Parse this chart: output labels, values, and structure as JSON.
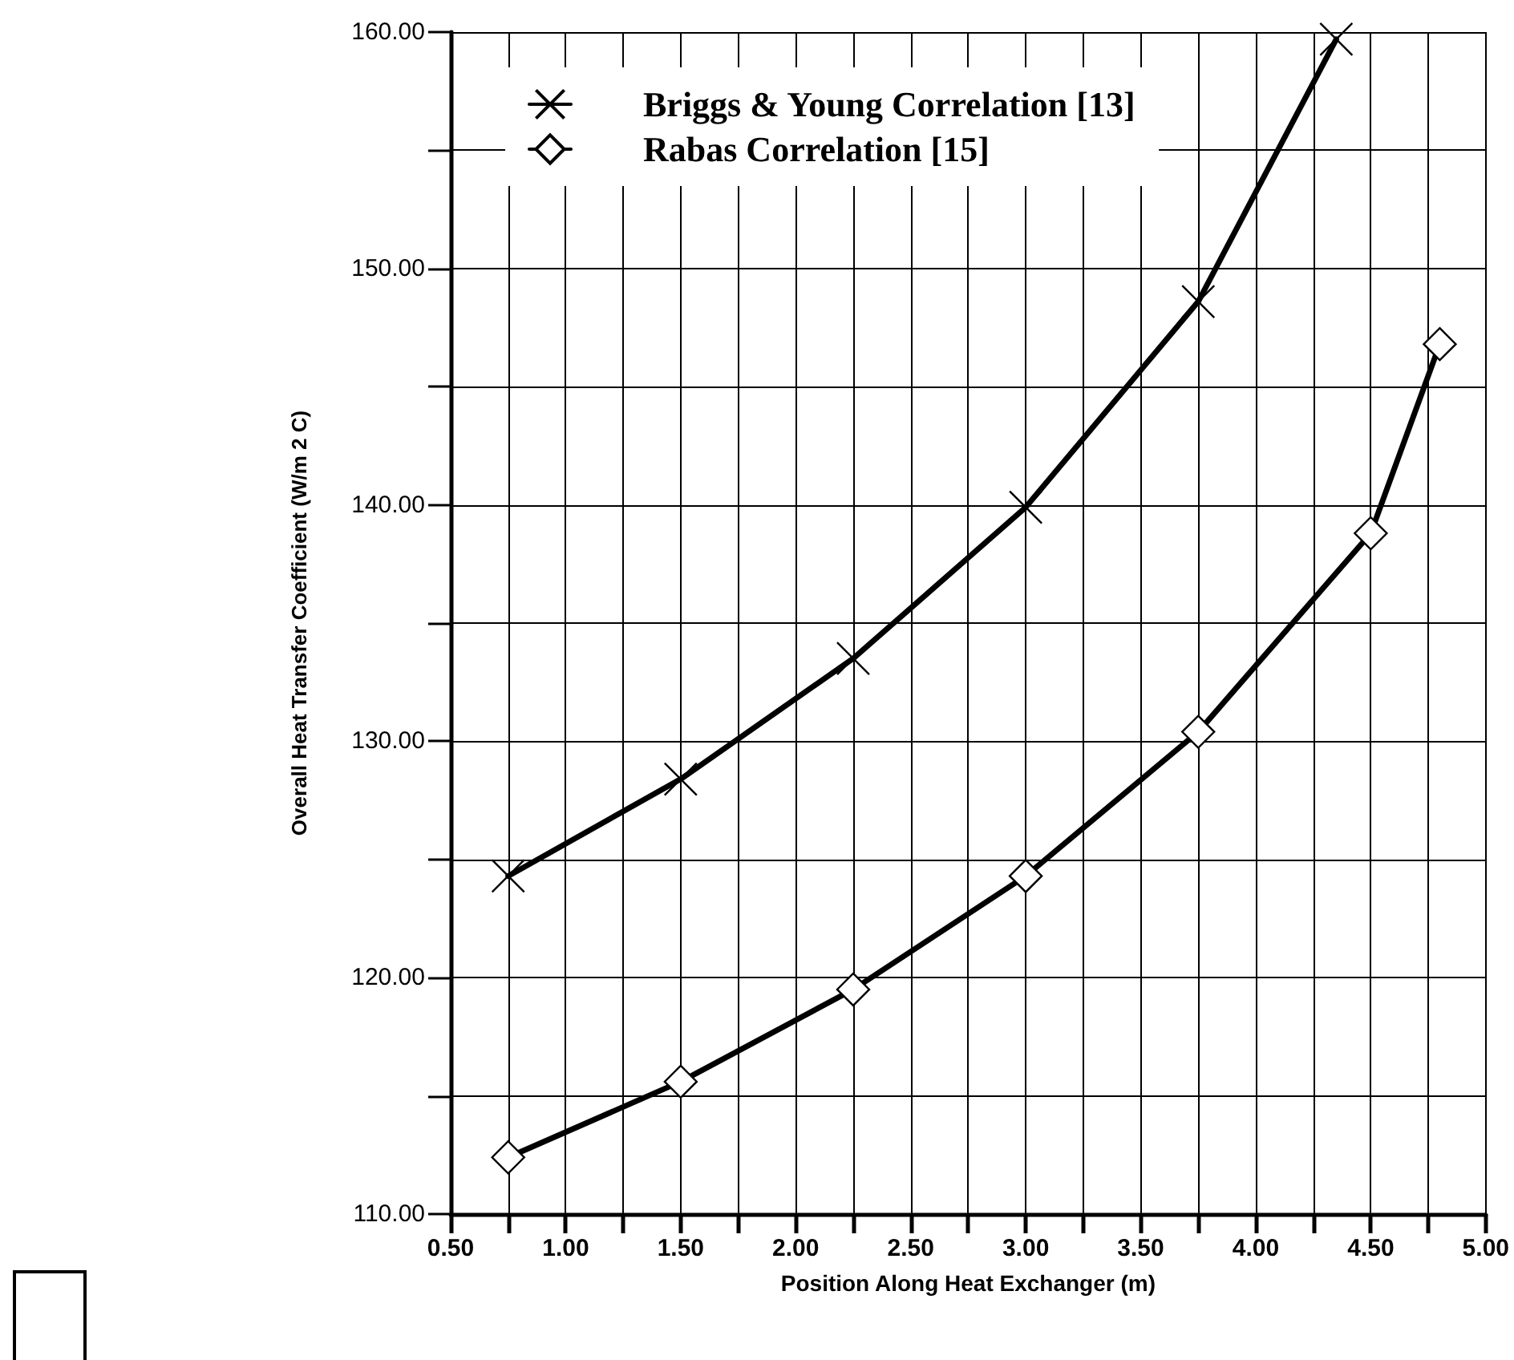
{
  "chart_data": {
    "type": "line",
    "xlabel": "Position Along Heat Exchanger (m)",
    "ylabel": "Overall Heat Transfer Coefficient (W/m 2 C)",
    "series": [
      {
        "name": "Briggs & Young Correlation [13]",
        "color": "#000000",
        "marker": "cross",
        "x": [
          0.75,
          1.5,
          2.25,
          3.0,
          3.75,
          4.35
        ],
        "values": [
          124.3,
          128.4,
          133.5,
          139.9,
          148.6,
          159.7
        ]
      },
      {
        "name": "Rabas Correlation [15]",
        "color": "#000000",
        "marker": "diamond",
        "x": [
          0.75,
          1.5,
          2.25,
          3.0,
          3.75,
          4.5,
          4.8
        ],
        "values": [
          112.4,
          115.6,
          119.5,
          124.3,
          130.4,
          138.8,
          146.8
        ]
      }
    ],
    "xlim": [
      0.5,
      5.0
    ],
    "xticks": [
      {
        "value": 0.5,
        "label": "0.50"
      },
      {
        "value": 0.75,
        "label": null
      },
      {
        "value": 1.0,
        "label": "1.00"
      },
      {
        "value": 1.25,
        "label": null
      },
      {
        "value": 1.5,
        "label": "1.50"
      },
      {
        "value": 1.75,
        "label": null
      },
      {
        "value": 2.0,
        "label": "2.00"
      },
      {
        "value": 2.25,
        "label": null
      },
      {
        "value": 2.5,
        "label": "2.50"
      },
      {
        "value": 2.75,
        "label": null
      },
      {
        "value": 3.0,
        "label": "3.00"
      },
      {
        "value": 3.25,
        "label": null
      },
      {
        "value": 3.5,
        "label": "3.50"
      },
      {
        "value": 3.75,
        "label": null
      },
      {
        "value": 4.0,
        "label": "4.00"
      },
      {
        "value": 4.25,
        "label": null
      },
      {
        "value": 4.5,
        "label": "4.50"
      },
      {
        "value": 4.75,
        "label": null
      },
      {
        "value": 5.0,
        "label": "5.00"
      }
    ],
    "ylim": [
      110,
      160
    ],
    "yticks": [
      {
        "value": 110,
        "label": "110.00"
      },
      {
        "value": 115,
        "label": null
      },
      {
        "value": 120,
        "label": "120.00"
      },
      {
        "value": 125,
        "label": null
      },
      {
        "value": 130,
        "label": "130.00"
      },
      {
        "value": 135,
        "label": null
      },
      {
        "value": 140,
        "label": "140.00"
      },
      {
        "value": 145,
        "label": null
      },
      {
        "value": 150,
        "label": "150.00"
      },
      {
        "value": 155,
        "label": null
      },
      {
        "value": 160,
        "label": "160.00"
      }
    ],
    "grid": true,
    "legend": "top",
    "line_style": "solid"
  }
}
